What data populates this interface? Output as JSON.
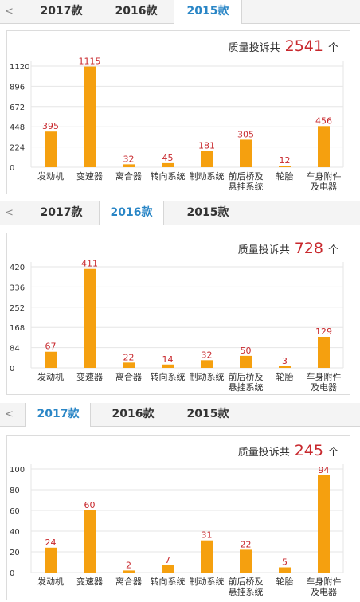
{
  "panels": [
    {
      "tabs": {
        "back": "<",
        "t2017": "2017款",
        "t2016": "2016款",
        "t2015": "2015款",
        "active": "2015款"
      },
      "total_label": "质量投诉共",
      "total_value": "2541",
      "total_unit": "个"
    },
    {
      "tabs": {
        "back": "<",
        "t2017": "2017款",
        "t2016": "2016款",
        "t2015": "2015款",
        "active": "2016款"
      },
      "total_label": "质量投诉共",
      "total_value": "728",
      "total_unit": "个"
    },
    {
      "tabs": {
        "back": "<",
        "t2017": "2017款",
        "t2016": "2016款",
        "t2015": "2015款",
        "active": "2017款"
      },
      "total_label": "质量投诉共",
      "total_value": "245",
      "total_unit": "个"
    }
  ],
  "colors": {
    "bar": "#f5a00f",
    "label": "#c8282d",
    "active_tab": "#2a86c6"
  },
  "chart_data": [
    {
      "type": "bar",
      "categories": [
        [
          "发动机"
        ],
        [
          "变速器"
        ],
        [
          "离合器"
        ],
        [
          "转向系统"
        ],
        [
          "制动系统"
        ],
        [
          "前后桥及",
          "悬挂系统"
        ],
        [
          "轮胎"
        ],
        [
          "车身附件",
          "及电器"
        ]
      ],
      "values": [
        395,
        1115,
        32,
        45,
        181,
        305,
        12,
        456
      ],
      "yticks": [
        0,
        224,
        448,
        672,
        896,
        1120
      ],
      "ylim": [
        0,
        1120
      ],
      "grid": true
    },
    {
      "type": "bar",
      "categories": [
        [
          "发动机"
        ],
        [
          "变速器"
        ],
        [
          "离合器"
        ],
        [
          "转向系统"
        ],
        [
          "制动系统"
        ],
        [
          "前后桥及",
          "悬挂系统"
        ],
        [
          "轮胎"
        ],
        [
          "车身附件",
          "及电器"
        ]
      ],
      "values": [
        67,
        411,
        22,
        14,
        32,
        50,
        3,
        129
      ],
      "yticks": [
        0,
        84,
        168,
        252,
        336,
        420
      ],
      "ylim": [
        0,
        420
      ],
      "grid": true
    },
    {
      "type": "bar",
      "categories": [
        [
          "发动机"
        ],
        [
          "变速器"
        ],
        [
          "离合器"
        ],
        [
          "转向系统"
        ],
        [
          "制动系统"
        ],
        [
          "前后桥及",
          "悬挂系统"
        ],
        [
          "轮胎"
        ],
        [
          "车身附件",
          "及电器"
        ]
      ],
      "values": [
        24,
        60,
        2,
        7,
        31,
        22,
        5,
        94
      ],
      "yticks": [
        0,
        20,
        40,
        60,
        80,
        100
      ],
      "ylim": [
        0,
        100
      ],
      "grid": true
    }
  ]
}
